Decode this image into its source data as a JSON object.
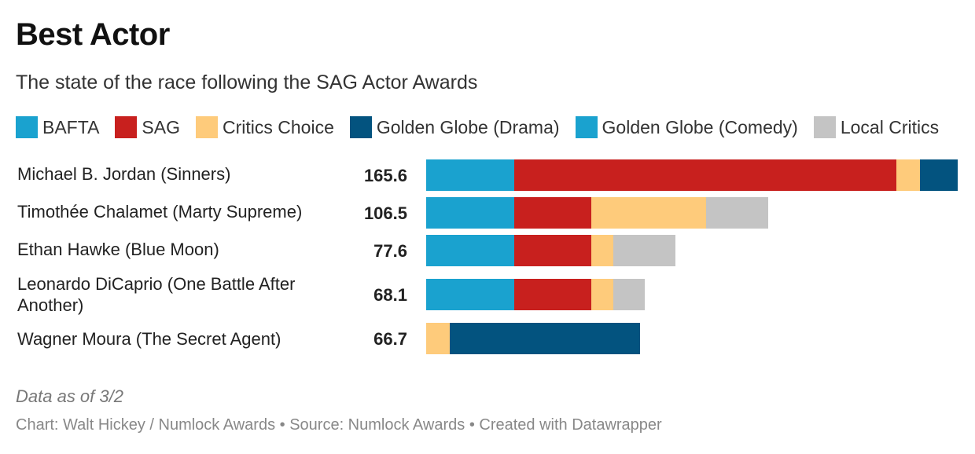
{
  "chart_data": {
    "type": "bar",
    "orientation": "horizontal",
    "stacked": true,
    "title": "Best Actor",
    "subtitle": "The state of the race following the SAG Actor Awards",
    "legend": [
      {
        "name": "BAFTA",
        "color": "#1aa2cf"
      },
      {
        "name": "SAG",
        "color": "#c8201e"
      },
      {
        "name": "Critics Choice",
        "color": "#fecb7b"
      },
      {
        "name": "Golden Globe (Drama)",
        "color": "#03537f"
      },
      {
        "name": "Golden Globe (Comedy)",
        "color": "#1aa2cf"
      },
      {
        "name": "Local Critics",
        "color": "#c4c4c4"
      }
    ],
    "categories": [
      "Michael B. Jordan (Sinners)",
      "Timothée Chalamet (Marty Supreme)",
      "Ethan Hawke (Blue Moon)",
      "Leonardo DiCaprio (One Battle After Another)",
      "Wagner Moura (The Secret Agent)"
    ],
    "totals": [
      "165.6",
      "106.5",
      "77.6",
      "68.1",
      "66.7"
    ],
    "xlim": [
      0,
      165.6
    ],
    "series": [
      {
        "name": "BAFTA",
        "values": [
          27.5,
          27.5,
          27.5,
          27.5,
          0
        ]
      },
      {
        "name": "SAG",
        "values": [
          119,
          24,
          24,
          24,
          0
        ]
      },
      {
        "name": "Critics Choice",
        "values": [
          7.3,
          35.7,
          6.9,
          6.9,
          7.4
        ]
      },
      {
        "name": "Golden Globe (Drama)",
        "values": [
          11.8,
          0,
          0,
          0,
          59.3
        ]
      },
      {
        "name": "Golden Globe (Comedy)",
        "values": [
          0,
          0,
          0,
          0,
          0
        ]
      },
      {
        "name": "Local Critics",
        "values": [
          0,
          19.3,
          19.2,
          9.7,
          0
        ]
      }
    ]
  },
  "note": "Data as of 3/2",
  "footer": "Chart: Walt Hickey / Numlock Awards • Source: Numlock Awards • Created with Datawrapper"
}
